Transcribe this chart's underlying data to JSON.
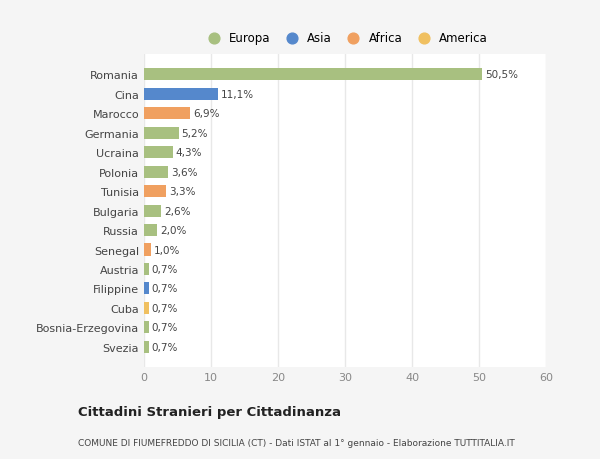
{
  "categories": [
    "Svezia",
    "Bosnia-Erzegovina",
    "Cuba",
    "Filippine",
    "Austria",
    "Senegal",
    "Russia",
    "Bulgaria",
    "Tunisia",
    "Polonia",
    "Ucraina",
    "Germania",
    "Marocco",
    "Cina",
    "Romania"
  ],
  "values": [
    0.7,
    0.7,
    0.7,
    0.7,
    0.7,
    1.0,
    2.0,
    2.6,
    3.3,
    3.6,
    4.3,
    5.2,
    6.9,
    11.1,
    50.5
  ],
  "labels": [
    "0,7%",
    "0,7%",
    "0,7%",
    "0,7%",
    "0,7%",
    "1,0%",
    "2,0%",
    "2,6%",
    "3,3%",
    "3,6%",
    "4,3%",
    "5,2%",
    "6,9%",
    "11,1%",
    "50,5%"
  ],
  "colors": [
    "#a8c080",
    "#a8c080",
    "#f0c060",
    "#5588cc",
    "#a8c080",
    "#f0a060",
    "#a8c080",
    "#a8c080",
    "#f0a060",
    "#a8c080",
    "#a8c080",
    "#a8c080",
    "#f0a060",
    "#5588cc",
    "#a8c080"
  ],
  "legend_labels": [
    "Europa",
    "Asia",
    "Africa",
    "America"
  ],
  "legend_colors": [
    "#a8c080",
    "#5588cc",
    "#f0a060",
    "#f0c060"
  ],
  "title": "Cittadini Stranieri per Cittadinanza",
  "subtitle": "COMUNE DI FIUMEFREDDO DI SICILIA (CT) - Dati ISTAT al 1° gennaio - Elaborazione TUTTITALIA.IT",
  "xlim": [
    0,
    60
  ],
  "xticks": [
    0,
    10,
    20,
    30,
    40,
    50,
    60
  ],
  "background_color": "#f5f5f5",
  "bar_background": "#ffffff",
  "grid_color": "#e8e8e8"
}
